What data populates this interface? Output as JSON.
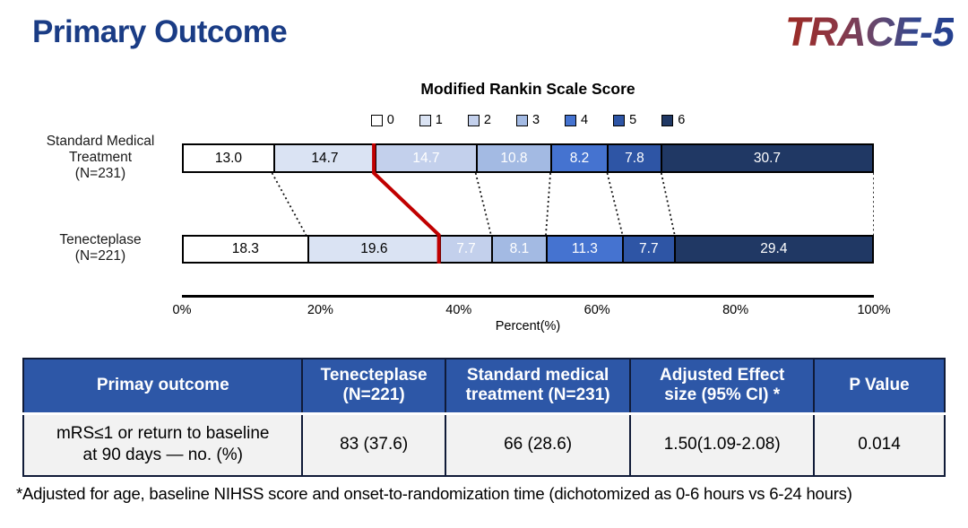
{
  "header": {
    "title": "Primary Outcome",
    "logo": "TRACE-5"
  },
  "chart_data": {
    "type": "bar",
    "stacked": true,
    "orientation": "horizontal",
    "title": "Modified Rankin Scale Score",
    "xlabel": "Percent(%)",
    "xlim": [
      0,
      100
    ],
    "x_tick_labels": [
      "0%",
      "20%",
      "40%",
      "60%",
      "80%",
      "100%"
    ],
    "legend": {
      "position": "top",
      "labels": [
        "0",
        "1",
        "2",
        "3",
        "4",
        "5",
        "6"
      ],
      "colors": [
        "#ffffff",
        "#dae3f3",
        "#c3d0ec",
        "#a3bae3",
        "#4573d0",
        "#2e55a5",
        "#203864"
      ]
    },
    "rows": [
      {
        "name": "Standard Medical Treatment (N=231)",
        "label_lines": [
          "Standard Medical",
          "Treatment",
          "(N=231)"
        ],
        "values": [
          13.0,
          14.7,
          14.7,
          10.8,
          8.2,
          7.8,
          30.7
        ]
      },
      {
        "name": "Tenecteplase (N=221)",
        "label_lines": [
          "Tenecteplase",
          "(N=221)"
        ],
        "values": [
          18.3,
          19.6,
          7.7,
          8.1,
          11.3,
          7.7,
          29.4
        ]
      }
    ],
    "cutoff_line": {
      "after_segment": 2,
      "color": "#c00000"
    },
    "dark_text_segments": [
      0,
      1
    ],
    "connector_style": {
      "color": "#141414",
      "dotted": true
    }
  },
  "table": {
    "headers": [
      "Primay outcome",
      "Tenecteplase\n(N=221)",
      "Standard medical\ntreatment (N=231)",
      "Adjusted Effect\nsize (95% CI) *",
      "P Value"
    ],
    "rows": [
      [
        "mRS≤1 or  return to baseline\nat 90 days — no. (%)",
        "83 (37.6)",
        "66 (28.6)",
        "1.50(1.09-2.08)",
        "0.014"
      ]
    ]
  },
  "footnote": "*Adjusted for age, baseline NIHSS score and onset-to-randomization time (dichotomized as 0-6 hours vs 6-24 hours)"
}
